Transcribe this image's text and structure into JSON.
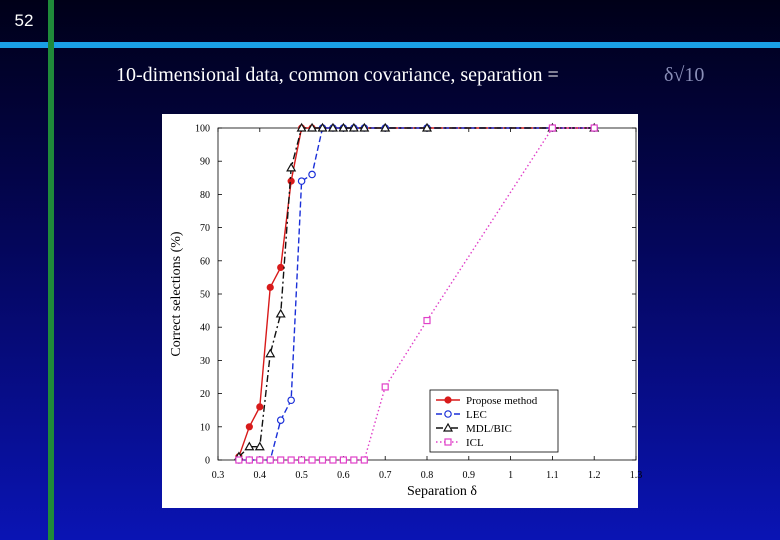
{
  "slide": {
    "number": "52",
    "title": "10-dimensional data, common covariance, separation = ",
    "formula": "δ√10"
  },
  "colors": {
    "accent_vertical": "#1f8a3a",
    "accent_horizontal": "#1aa0e6"
  },
  "chart_data": {
    "type": "line",
    "title": "",
    "xlabel": "Separation δ",
    "ylabel": "Correct selections (%)",
    "xlim": [
      0.3,
      1.3
    ],
    "ylim": [
      0,
      100
    ],
    "xticks": [
      0.3,
      0.4,
      0.5,
      0.6,
      0.7,
      0.8,
      0.9,
      1.0,
      1.1,
      1.2,
      1.3
    ],
    "xtick_labels": [
      "0.3",
      "0.4",
      "0.5",
      "0.6",
      "0.7",
      "0.8",
      "0.9",
      "1",
      "1.1",
      "1.2",
      "1.3"
    ],
    "yticks": [
      0,
      10,
      20,
      30,
      40,
      50,
      60,
      70,
      80,
      90,
      100
    ],
    "ytick_labels": [
      "0",
      "10",
      "20",
      "30",
      "40",
      "50",
      "60",
      "70",
      "80",
      "90",
      "100"
    ],
    "grid": false,
    "legend": "bottom-right",
    "series": [
      {
        "name": "Propose method",
        "color": "#d81a1a",
        "marker": "filled-circle",
        "line": "solid",
        "x": [
          0.35,
          0.375,
          0.4,
          0.425,
          0.45,
          0.475,
          0.5,
          0.525,
          0.55,
          0.575,
          0.6,
          0.625,
          0.65,
          0.7,
          0.8,
          1.1,
          1.2
        ],
        "y": [
          1,
          10,
          16,
          52,
          58,
          84,
          100,
          100,
          100,
          100,
          100,
          100,
          100,
          100,
          100,
          100,
          100
        ]
      },
      {
        "name": "LEC",
        "color": "#1a2fd8",
        "marker": "open-circle",
        "line": "dashed",
        "x": [
          0.35,
          0.375,
          0.4,
          0.425,
          0.45,
          0.475,
          0.5,
          0.525,
          0.55,
          0.575,
          0.6,
          0.625,
          0.65,
          0.7,
          0.8,
          1.1,
          1.2
        ],
        "y": [
          0,
          0,
          0,
          0,
          12,
          18,
          84,
          86,
          100,
          100,
          100,
          100,
          100,
          100,
          100,
          100,
          100
        ]
      },
      {
        "name": "MDL/BIC",
        "color": "#111111",
        "marker": "open-triangle",
        "line": "dashdot",
        "x": [
          0.35,
          0.375,
          0.4,
          0.425,
          0.45,
          0.475,
          0.5,
          0.525,
          0.55,
          0.575,
          0.6,
          0.625,
          0.65,
          0.7,
          0.8,
          1.1,
          1.2
        ],
        "y": [
          1,
          4,
          4,
          32,
          44,
          88,
          100,
          100,
          100,
          100,
          100,
          100,
          100,
          100,
          100,
          100,
          100
        ]
      },
      {
        "name": "ICL",
        "color": "#e040c8",
        "marker": "open-square",
        "line": "dotted",
        "x": [
          0.35,
          0.375,
          0.4,
          0.425,
          0.45,
          0.475,
          0.5,
          0.525,
          0.55,
          0.575,
          0.6,
          0.625,
          0.65,
          0.7,
          0.8,
          1.1,
          1.2
        ],
        "y": [
          0,
          0,
          0,
          0,
          0,
          0,
          0,
          0,
          0,
          0,
          0,
          0,
          0,
          22,
          42,
          100,
          100
        ]
      }
    ]
  }
}
